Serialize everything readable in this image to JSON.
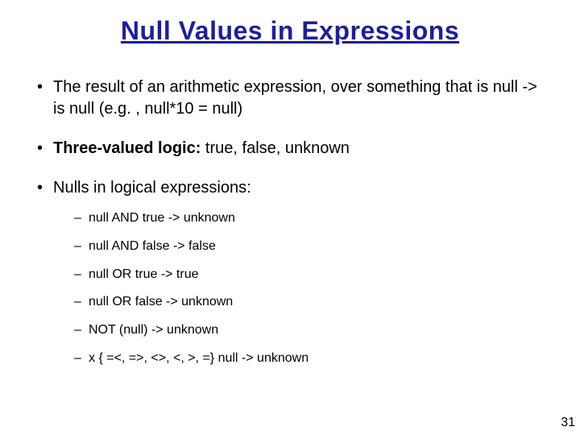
{
  "title": "Null Values in Expressions",
  "bullets": {
    "b1": "The result of an arithmetic expression, over something that is null -> is null (e.g. , null*10 = null)",
    "b2_strong": "Three-valued logic:",
    "b2_rest": " true, false, unknown",
    "b3": "Nulls in logical expressions:"
  },
  "sub": {
    "s1": "null AND true -> unknown",
    "s2": "null AND false -> false",
    "s3": "null OR true -> true",
    "s4": "null OR false -> unknown",
    "s5": "NOT (null) -> unknown",
    "s6": "x { =<, =>, <>, <, >, =} null -> unknown"
  },
  "page_number": "31",
  "colors": {
    "title_color": "#1e1e9e",
    "text_color": "#000000",
    "background": "#ffffff"
  },
  "typography": {
    "title_fontsize": 32,
    "bullet_fontsize": 20,
    "sub_fontsize": 16,
    "font_family": "Comic Sans MS"
  }
}
